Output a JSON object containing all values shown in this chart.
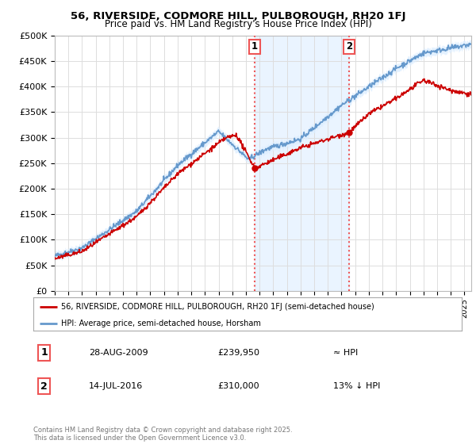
{
  "title": "56, RIVERSIDE, CODMORE HILL, PULBOROUGH, RH20 1FJ",
  "subtitle": "Price paid vs. HM Land Registry's House Price Index (HPI)",
  "ylabel_ticks": [
    "£0",
    "£50K",
    "£100K",
    "£150K",
    "£200K",
    "£250K",
    "£300K",
    "£350K",
    "£400K",
    "£450K",
    "£500K"
  ],
  "ytick_vals": [
    0,
    50000,
    100000,
    150000,
    200000,
    250000,
    300000,
    350000,
    400000,
    450000,
    500000
  ],
  "ylim": [
    0,
    500000
  ],
  "xlim_start": 1995.0,
  "xlim_end": 2025.5,
  "sale1_x": 2009.65,
  "sale1_y": 239950,
  "sale2_x": 2016.54,
  "sale2_y": 310000,
  "vline1_x": 2009.65,
  "vline2_x": 2016.54,
  "legend_label_red": "56, RIVERSIDE, CODMORE HILL, PULBOROUGH, RH20 1FJ (semi-detached house)",
  "legend_label_blue": "HPI: Average price, semi-detached house, Horsham",
  "annotation1_date": "28-AUG-2009",
  "annotation1_price": "£239,950",
  "annotation1_hpi": "≈ HPI",
  "annotation2_date": "14-JUL-2016",
  "annotation2_price": "£310,000",
  "annotation2_hpi": "13% ↓ HPI",
  "footer": "Contains HM Land Registry data © Crown copyright and database right 2025.\nThis data is licensed under the Open Government Licence v3.0.",
  "red_color": "#cc0000",
  "blue_color": "#6699cc",
  "blue_fill": "#ddeeff",
  "vline_color": "#ee5555",
  "background_color": "#ffffff",
  "grid_color": "#dddddd"
}
